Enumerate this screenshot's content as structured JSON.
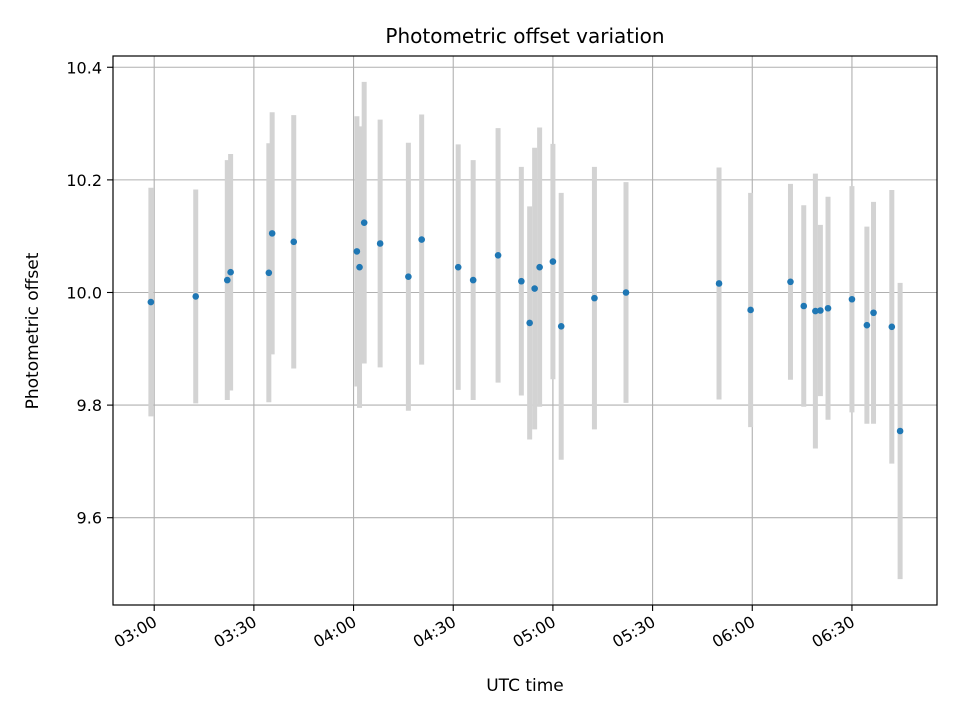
{
  "chart_data": {
    "type": "scatter",
    "title": "Photometric offset variation",
    "xlabel": "UTC time",
    "ylabel": "Photometric offset",
    "x_ticks": [
      "03:00",
      "03:30",
      "04:00",
      "04:30",
      "05:00",
      "05:30",
      "06:00",
      "06:30"
    ],
    "x_tick_minutes": [
      180,
      210,
      240,
      270,
      300,
      330,
      360,
      390
    ],
    "xlim_minutes": [
      167.6,
      415.6
    ],
    "ylim": [
      9.445,
      10.42
    ],
    "y_ticks": [
      9.6,
      9.8,
      10.0,
      10.2,
      10.4
    ],
    "grid": true,
    "colors": {
      "points": "#1f77b4",
      "errorbars": "#d3d3d3",
      "grid": "#b0b0b0"
    },
    "series": [
      {
        "x_minutes": [
          179.0,
          192.5,
          202.0,
          203.0,
          214.5,
          215.5,
          222.0,
          241.0,
          241.8,
          243.2,
          248.0,
          256.5,
          260.5,
          271.5,
          276.0,
          283.5,
          290.5,
          293.0,
          294.5,
          296.0,
          300.0,
          302.5,
          312.5,
          322.0,
          350.0,
          359.5,
          371.5,
          375.5,
          379.0,
          380.5,
          382.8,
          390.0,
          394.5,
          396.5,
          402.0,
          404.5
        ],
        "y": [
          9.983,
          9.993,
          10.022,
          10.036,
          10.035,
          10.105,
          10.09,
          10.073,
          10.045,
          10.124,
          10.087,
          10.028,
          10.094,
          10.045,
          10.022,
          10.066,
          10.02,
          9.946,
          10.007,
          10.045,
          10.055,
          9.94,
          9.99,
          10.0,
          10.016,
          9.969,
          10.019,
          9.976,
          9.967,
          9.968,
          9.972,
          9.988,
          9.942,
          9.964,
          9.939,
          9.754
        ],
        "yerr": [
          0.203,
          0.19,
          0.213,
          0.21,
          0.23,
          0.215,
          0.225,
          0.24,
          0.25,
          0.25,
          0.22,
          0.238,
          0.222,
          0.218,
          0.213,
          0.226,
          0.203,
          0.207,
          0.25,
          0.248,
          0.209,
          0.237,
          0.233,
          0.196,
          0.206,
          0.208,
          0.174,
          0.179,
          0.244,
          0.152,
          0.198,
          0.201,
          0.175,
          0.197,
          0.243,
          0.263
        ]
      }
    ]
  }
}
